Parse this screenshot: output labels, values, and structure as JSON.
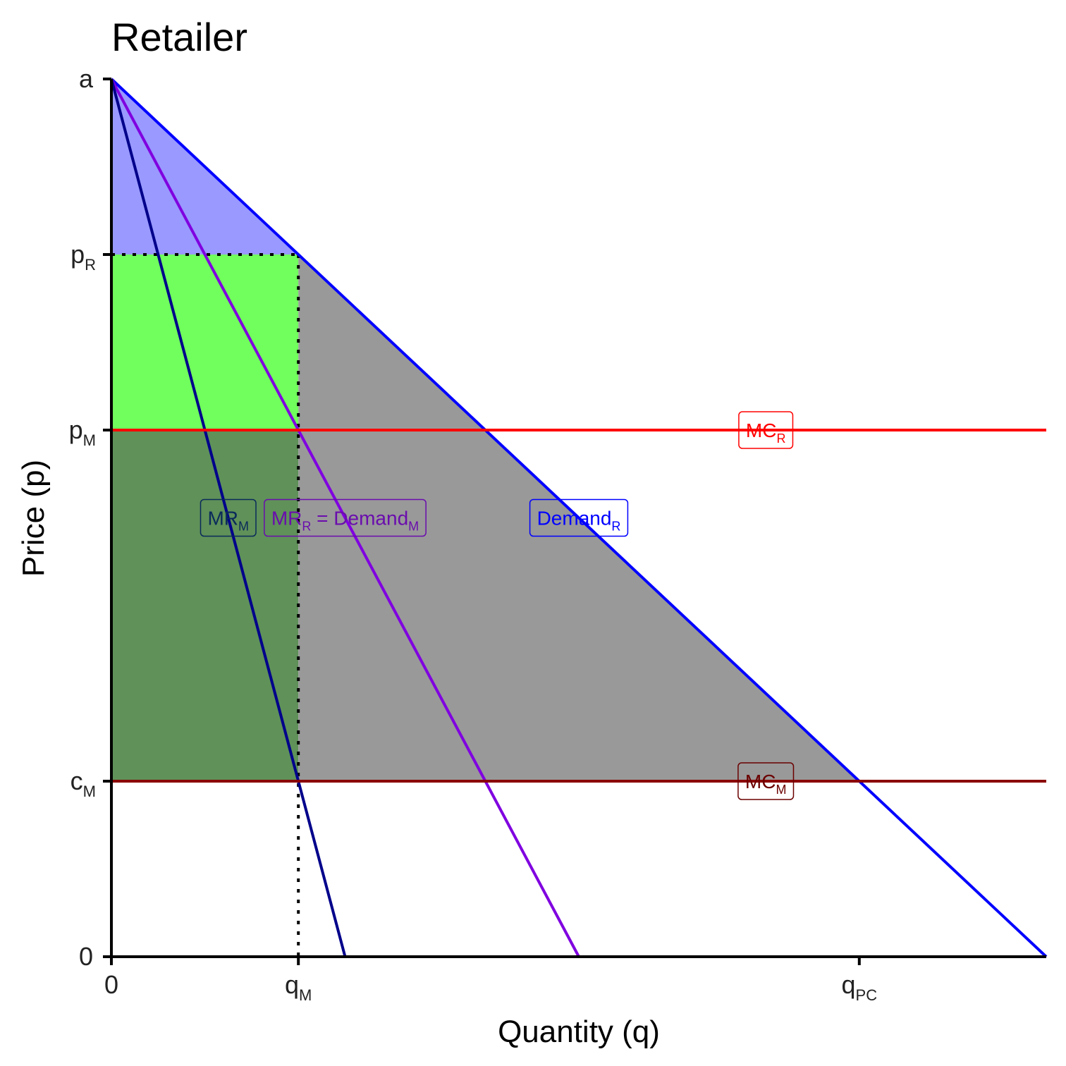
{
  "chart_data": {
    "type": "line",
    "title": "Retailer",
    "xlabel": "Quantity (q)",
    "ylabel": "Price (p)",
    "xlim": [
      0,
      100
    ],
    "ylim": [
      0,
      100
    ],
    "x_ticks": [
      {
        "value": 0,
        "label": "0",
        "sub": ""
      },
      {
        "value": 20,
        "label": "q",
        "sub": "M"
      },
      {
        "value": 80,
        "label": "q",
        "sub": "PC"
      }
    ],
    "y_ticks": [
      {
        "value": 0,
        "label": "0",
        "sub": ""
      },
      {
        "value": 20,
        "label": "c",
        "sub": "M"
      },
      {
        "value": 60,
        "label": "p",
        "sub": "M"
      },
      {
        "value": 80,
        "label": "p",
        "sub": "R"
      },
      {
        "value": 100,
        "label": "a",
        "sub": ""
      }
    ],
    "regions": [
      {
        "name": "consumer-surplus",
        "color": "#9999ff",
        "points": [
          [
            0,
            100
          ],
          [
            20,
            80
          ],
          [
            0,
            80
          ]
        ]
      },
      {
        "name": "retailer-profit",
        "color": "#70ff5c",
        "points": [
          [
            0,
            80
          ],
          [
            20,
            80
          ],
          [
            20,
            60
          ],
          [
            0,
            60
          ]
        ]
      },
      {
        "name": "manufacturer-profit",
        "color": "#5f9159",
        "points": [
          [
            0,
            60
          ],
          [
            20,
            60
          ],
          [
            20,
            20
          ],
          [
            0,
            20
          ]
        ]
      },
      {
        "name": "deadweight-loss",
        "color": "#999999",
        "points": [
          [
            20,
            80
          ],
          [
            80,
            20
          ],
          [
            20,
            20
          ]
        ]
      }
    ],
    "series": [
      {
        "name": "Demand",
        "sub": "R",
        "color": "#0000ff",
        "points": [
          [
            0,
            100
          ],
          [
            100,
            0
          ]
        ]
      },
      {
        "name": "MR = Demand",
        "sub": "R",
        "sub2": "M",
        "color": "#8000e0",
        "points": [
          [
            0,
            100
          ],
          [
            50,
            0
          ]
        ]
      },
      {
        "name": "MR",
        "sub": "M",
        "color": "#00008b",
        "points": [
          [
            0,
            100
          ],
          [
            25,
            0
          ]
        ]
      },
      {
        "name": "MC",
        "sub": "R",
        "color": "#ff0000",
        "points": [
          [
            0,
            60
          ],
          [
            100,
            60
          ]
        ]
      },
      {
        "name": "MC",
        "sub": "M",
        "color": "#8b0000",
        "points": [
          [
            0,
            20
          ],
          [
            100,
            20
          ]
        ]
      }
    ],
    "guides": [
      {
        "points": [
          [
            0,
            80
          ],
          [
            20,
            80
          ]
        ]
      },
      {
        "points": [
          [
            20,
            80
          ],
          [
            20,
            0
          ]
        ]
      }
    ],
    "labels": [
      {
        "parts": [
          {
            "text": "MC",
            "sub": false
          },
          {
            "text": "R",
            "sub": true
          }
        ],
        "x": 70,
        "y": 60,
        "color": "#ff0000"
      },
      {
        "parts": [
          {
            "text": "MC",
            "sub": false
          },
          {
            "text": "M",
            "sub": true
          }
        ],
        "x": 70,
        "y": 20,
        "color": "#6b0000"
      },
      {
        "parts": [
          {
            "text": "Demand",
            "sub": false
          },
          {
            "text": "R",
            "sub": true
          }
        ],
        "x": 50,
        "y": 50,
        "color": "#0000ff"
      },
      {
        "parts": [
          {
            "text": "MR",
            "sub": false
          },
          {
            "text": "R",
            "sub": true
          },
          {
            "text": " = Demand",
            "sub": false
          },
          {
            "text": "M",
            "sub": true
          }
        ],
        "x": 25,
        "y": 50,
        "color": "#6a0dad"
      },
      {
        "parts": [
          {
            "text": "MR",
            "sub": false
          },
          {
            "text": "M",
            "sub": true
          }
        ],
        "x": 12.5,
        "y": 50,
        "color": "#0a2a5a"
      }
    ],
    "grid": false,
    "legend": "none"
  }
}
